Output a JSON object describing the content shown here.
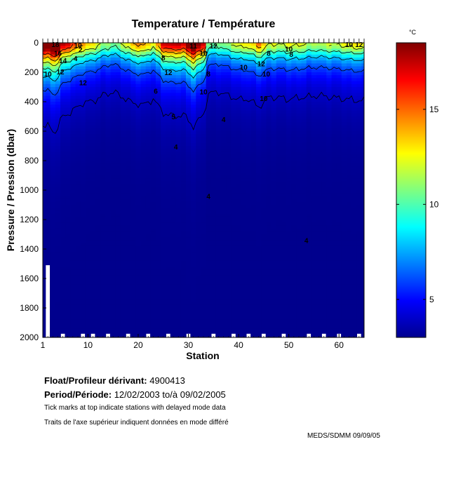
{
  "chart_data": {
    "type": "heatmap",
    "title": "Temperature / Température",
    "xlabel": "Station",
    "ylabel": "Pressure / Pression (dbar)",
    "xlim": [
      1,
      65
    ],
    "ylim": [
      0,
      2000
    ],
    "y_inverted": true,
    "x_ticks": [
      1,
      10,
      20,
      30,
      40,
      50,
      60
    ],
    "y_ticks": [
      0,
      200,
      400,
      600,
      800,
      1000,
      1200,
      1400,
      1600,
      1800,
      2000
    ],
    "colorbar": {
      "unit": "°C",
      "range": [
        3,
        18.5
      ],
      "ticks": [
        5,
        10,
        15
      ],
      "colormap": "jet"
    },
    "contour_labels": [
      {
        "x": 3.5,
        "y": 10,
        "text": "18"
      },
      {
        "x": 8,
        "y": 15,
        "text": "10"
      },
      {
        "x": 8.5,
        "y": 45,
        "text": "2"
      },
      {
        "x": 4,
        "y": 70,
        "text": "16"
      },
      {
        "x": 7.5,
        "y": 105,
        "text": "4"
      },
      {
        "x": 5,
        "y": 120,
        "text": "14"
      },
      {
        "x": 4.5,
        "y": 195,
        "text": "12"
      },
      {
        "x": 2,
        "y": 210,
        "text": "10"
      },
      {
        "x": 9,
        "y": 270,
        "text": "12"
      },
      {
        "x": 26,
        "y": 200,
        "text": "12"
      },
      {
        "x": 25,
        "y": 100,
        "text": "8"
      },
      {
        "x": 31,
        "y": 20,
        "text": "11"
      },
      {
        "x": 35,
        "y": 20,
        "text": "12"
      },
      {
        "x": 33,
        "y": 70,
        "text": "10"
      },
      {
        "x": 23.5,
        "y": 325,
        "text": "6"
      },
      {
        "x": 27,
        "y": 500,
        "text": "5"
      },
      {
        "x": 27.5,
        "y": 705,
        "text": "4"
      },
      {
        "x": 34,
        "y": 210,
        "text": "8"
      },
      {
        "x": 33,
        "y": 330,
        "text": "10"
      },
      {
        "x": 37,
        "y": 520,
        "text": "4"
      },
      {
        "x": 34,
        "y": 1040,
        "text": "4"
      },
      {
        "x": 41,
        "y": 165,
        "text": "10"
      },
      {
        "x": 44.5,
        "y": 140,
        "text": "12"
      },
      {
        "x": 45.5,
        "y": 210,
        "text": "10"
      },
      {
        "x": 45,
        "y": 375,
        "text": "10"
      },
      {
        "x": 46,
        "y": 70,
        "text": "8"
      },
      {
        "x": 50,
        "y": 40,
        "text": "10"
      },
      {
        "x": 50.5,
        "y": 75,
        "text": "8"
      },
      {
        "x": 53.5,
        "y": 1340,
        "text": "4"
      },
      {
        "x": 62,
        "y": 10,
        "text": "10"
      },
      {
        "x": 64,
        "y": 10,
        "text": "12"
      }
    ],
    "delayed_mode_tick_stations": [
      2,
      8,
      14,
      22,
      27,
      31,
      36,
      43,
      48,
      54,
      58,
      62,
      65
    ]
  },
  "float_label": "Float/Profileur dérivant:",
  "float_id": "4900413",
  "period_label": "Period/Période:",
  "period_start": "12/02/2003",
  "period_to": "to/à",
  "period_end": "09/02/2005",
  "note_en": "Tick marks at top indicate stations with delayed mode data",
  "note_fr": "Traits de l'axe supérieur indiquent données en mode différé",
  "credit": "MEDS/SDMM  09/09/05"
}
